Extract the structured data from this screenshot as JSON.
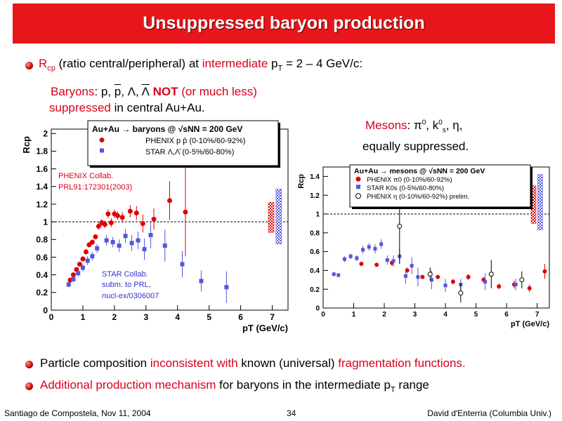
{
  "slide": {
    "title": "Unsuppressed baryon production",
    "bullet1": {
      "pre": "R",
      "sub": "cp",
      "mid": " (ratio central/peripheral) at ",
      "hl": "intermediate",
      "post1": " p",
      "sub2": "T",
      "post2": " = 2 – 4 GeV/c:"
    },
    "baryons": {
      "label": "Baryons",
      "rest": ":  p, ",
      "pbar": "p",
      ", ": ", ",
      "lam": "Λ, ",
      "lambar": "Λ",
      "not": " NOT",
      "much": " (or much less)",
      "supp": "suppressed",
      "central": " in central Au+Au."
    },
    "mesons": {
      "label": "Mesons",
      "rest": ":  π",
      "sup0": "0",
      ", k": ", k",
      "sup0b": "0",
      "subs": "s",
      ", eta": ", η,",
      "line2": "equally suppressed."
    },
    "bullet2": {
      "a": "Particle composition ",
      "b": "inconsistent with",
      "c": " known (universal) ",
      "d": "fragmentation functions."
    },
    "bullet3": {
      "a": "Additional production mechanism",
      "b": " for baryons in the intermediate p",
      "sub": "T",
      "c": " range"
    },
    "footer": {
      "left": "Santiago de Compostela, Nov 11, 2004",
      "page": "34",
      "right": "David d'Enterria (Columbia Univ.)"
    }
  },
  "colors": {
    "red": "#d9001b",
    "phenix": "#e00000",
    "star": "#5555dd"
  },
  "chart_data": [
    {
      "type": "scatter",
      "title": "Au+Au → baryons @ √sNN = 200 GeV",
      "xlabel": "pT (GeV/c)",
      "ylabel": "Rcp",
      "xlim": [
        0,
        7.5
      ],
      "ylim": [
        0,
        2.05
      ],
      "xticks": [
        0,
        1,
        2,
        3,
        4,
        5,
        6,
        7
      ],
      "yticks": [
        0,
        0.2,
        0.4,
        0.6,
        0.8,
        1,
        1.2,
        1.4,
        1.6,
        1.8,
        2
      ],
      "legend": "top",
      "annotations": [
        {
          "text": "PHENIX Collab.",
          "color": "#d9001b"
        },
        {
          "text": "PRL91:172301(2003)",
          "color": "#d9001b"
        },
        {
          "text": "STAR Collab.",
          "color": "#3333cc"
        },
        {
          "text": "subm. to PRL,",
          "color": "#3333cc"
        },
        {
          "text": "nucl-ex/0306007",
          "color": "#3333cc"
        }
      ],
      "series": [
        {
          "name": "PHENIX p p̄ (0-10%/60-92%)",
          "marker": "circle",
          "points": [
            [
              0.6,
              0.34,
              0.02
            ],
            [
              0.7,
              0.4,
              0.02
            ],
            [
              0.8,
              0.46,
              0.02
            ],
            [
              0.9,
              0.52,
              0.02
            ],
            [
              1.0,
              0.58,
              0.03
            ],
            [
              1.1,
              0.66,
              0.03
            ],
            [
              1.2,
              0.74,
              0.03
            ],
            [
              1.3,
              0.77,
              0.03
            ],
            [
              1.4,
              0.83,
              0.03
            ],
            [
              1.5,
              0.95,
              0.04
            ],
            [
              1.6,
              0.99,
              0.04
            ],
            [
              1.7,
              0.97,
              0.04
            ],
            [
              1.8,
              1.09,
              0.05
            ],
            [
              1.9,
              0.99,
              0.05
            ],
            [
              2.0,
              1.09,
              0.05
            ],
            [
              2.1,
              1.07,
              0.05
            ],
            [
              2.25,
              1.05,
              0.06
            ],
            [
              2.5,
              1.12,
              0.07
            ],
            [
              2.7,
              1.1,
              0.08
            ],
            [
              2.9,
              0.98,
              0.1
            ],
            [
              3.25,
              1.03,
              0.12
            ],
            [
              3.75,
              1.24,
              0.22
            ],
            [
              4.25,
              1.11,
              0.5
            ]
          ]
        },
        {
          "name": "STAR Λ,Λ̄ (0-5%/60-80%)",
          "marker": "square",
          "points": [
            [
              0.55,
              0.29,
              0.03
            ],
            [
              0.7,
              0.35,
              0.03
            ],
            [
              0.85,
              0.42,
              0.04
            ],
            [
              1.0,
              0.48,
              0.04
            ],
            [
              1.15,
              0.56,
              0.05
            ],
            [
              1.3,
              0.61,
              0.05
            ],
            [
              1.45,
              0.7,
              0.05
            ],
            [
              1.75,
              0.79,
              0.06
            ],
            [
              1.95,
              0.77,
              0.06
            ],
            [
              2.15,
              0.73,
              0.07
            ],
            [
              2.35,
              0.84,
              0.08
            ],
            [
              2.55,
              0.76,
              0.09
            ],
            [
              2.75,
              0.79,
              0.1
            ],
            [
              2.95,
              0.69,
              0.12
            ],
            [
              3.15,
              0.85,
              0.15
            ],
            [
              3.6,
              0.73,
              0.18
            ],
            [
              4.15,
              0.52,
              0.15
            ],
            [
              4.75,
              0.33,
              0.12
            ],
            [
              5.55,
              0.26,
              0.18
            ]
          ]
        }
      ],
      "systematic_bars": [
        {
          "color": "#e00000",
          "range": [
            0.88,
            1.22
          ]
        },
        {
          "color": "#5555dd",
          "range": [
            0.75,
            1.37
          ]
        }
      ]
    },
    {
      "type": "scatter",
      "title": "Au+Au → mesons @ √sNN = 200 GeV",
      "xlabel": "pT (GeV/c)",
      "ylabel": "Rcp",
      "xlim": [
        0,
        7.4
      ],
      "ylim": [
        0,
        1.5
      ],
      "xticks": [
        0,
        1,
        2,
        3,
        4,
        5,
        6,
        7
      ],
      "yticks": [
        0,
        0.2,
        0.4,
        0.6,
        0.8,
        1,
        1.2,
        1.4
      ],
      "legend": "top",
      "series": [
        {
          "name": "PHENIX π0 (0-10%/60-92%)",
          "marker": "circle",
          "points": [
            [
              1.25,
              0.47,
              0.02
            ],
            [
              1.75,
              0.46,
              0.02
            ],
            [
              2.25,
              0.48,
              0.03
            ],
            [
              2.75,
              0.4,
              0.03
            ],
            [
              3.25,
              0.33,
              0.02
            ],
            [
              3.75,
              0.33,
              0.02
            ],
            [
              4.25,
              0.28,
              0.03
            ],
            [
              4.75,
              0.33,
              0.03
            ],
            [
              5.25,
              0.3,
              0.03
            ],
            [
              5.75,
              0.23,
              0.03
            ],
            [
              6.25,
              0.25,
              0.04
            ],
            [
              6.75,
              0.21,
              0.04
            ],
            [
              7.25,
              0.39,
              0.08
            ]
          ]
        },
        {
          "name": "STAR K0s (0-5%/60-80%)",
          "marker": "square",
          "points": [
            [
              0.35,
              0.36,
              0.02
            ],
            [
              0.5,
              0.35,
              0.02
            ],
            [
              0.7,
              0.52,
              0.03
            ],
            [
              0.9,
              0.55,
              0.03
            ],
            [
              1.1,
              0.53,
              0.03
            ],
            [
              1.3,
              0.62,
              0.04
            ],
            [
              1.5,
              0.65,
              0.04
            ],
            [
              1.7,
              0.63,
              0.05
            ],
            [
              1.9,
              0.68,
              0.05
            ],
            [
              2.1,
              0.51,
              0.05
            ],
            [
              2.3,
              0.5,
              0.06
            ],
            [
              2.5,
              0.55,
              0.08
            ],
            [
              2.7,
              0.34,
              0.08
            ],
            [
              2.9,
              0.45,
              0.09
            ],
            [
              3.1,
              0.33,
              0.1
            ],
            [
              3.55,
              0.3,
              0.1
            ],
            [
              4.0,
              0.24,
              0.07
            ],
            [
              4.5,
              0.25,
              0.06
            ],
            [
              5.3,
              0.28,
              0.09
            ],
            [
              6.3,
              0.25,
              0.06
            ]
          ]
        },
        {
          "name": "PHENIX η (0-10%/60-92%) prelim.",
          "marker": "open-circle",
          "points": [
            [
              2.5,
              0.87,
              0.4
            ],
            [
              3.5,
              0.36,
              0.07
            ],
            [
              4.5,
              0.16,
              0.1
            ],
            [
              5.5,
              0.36,
              0.15
            ],
            [
              6.5,
              0.3,
              0.09
            ]
          ]
        }
      ],
      "systematic_bars": [
        {
          "color": "#e00000",
          "range": [
            0.9,
            1.3
          ]
        },
        {
          "color": "#5555dd",
          "range": [
            0.83,
            1.42
          ]
        }
      ]
    }
  ]
}
